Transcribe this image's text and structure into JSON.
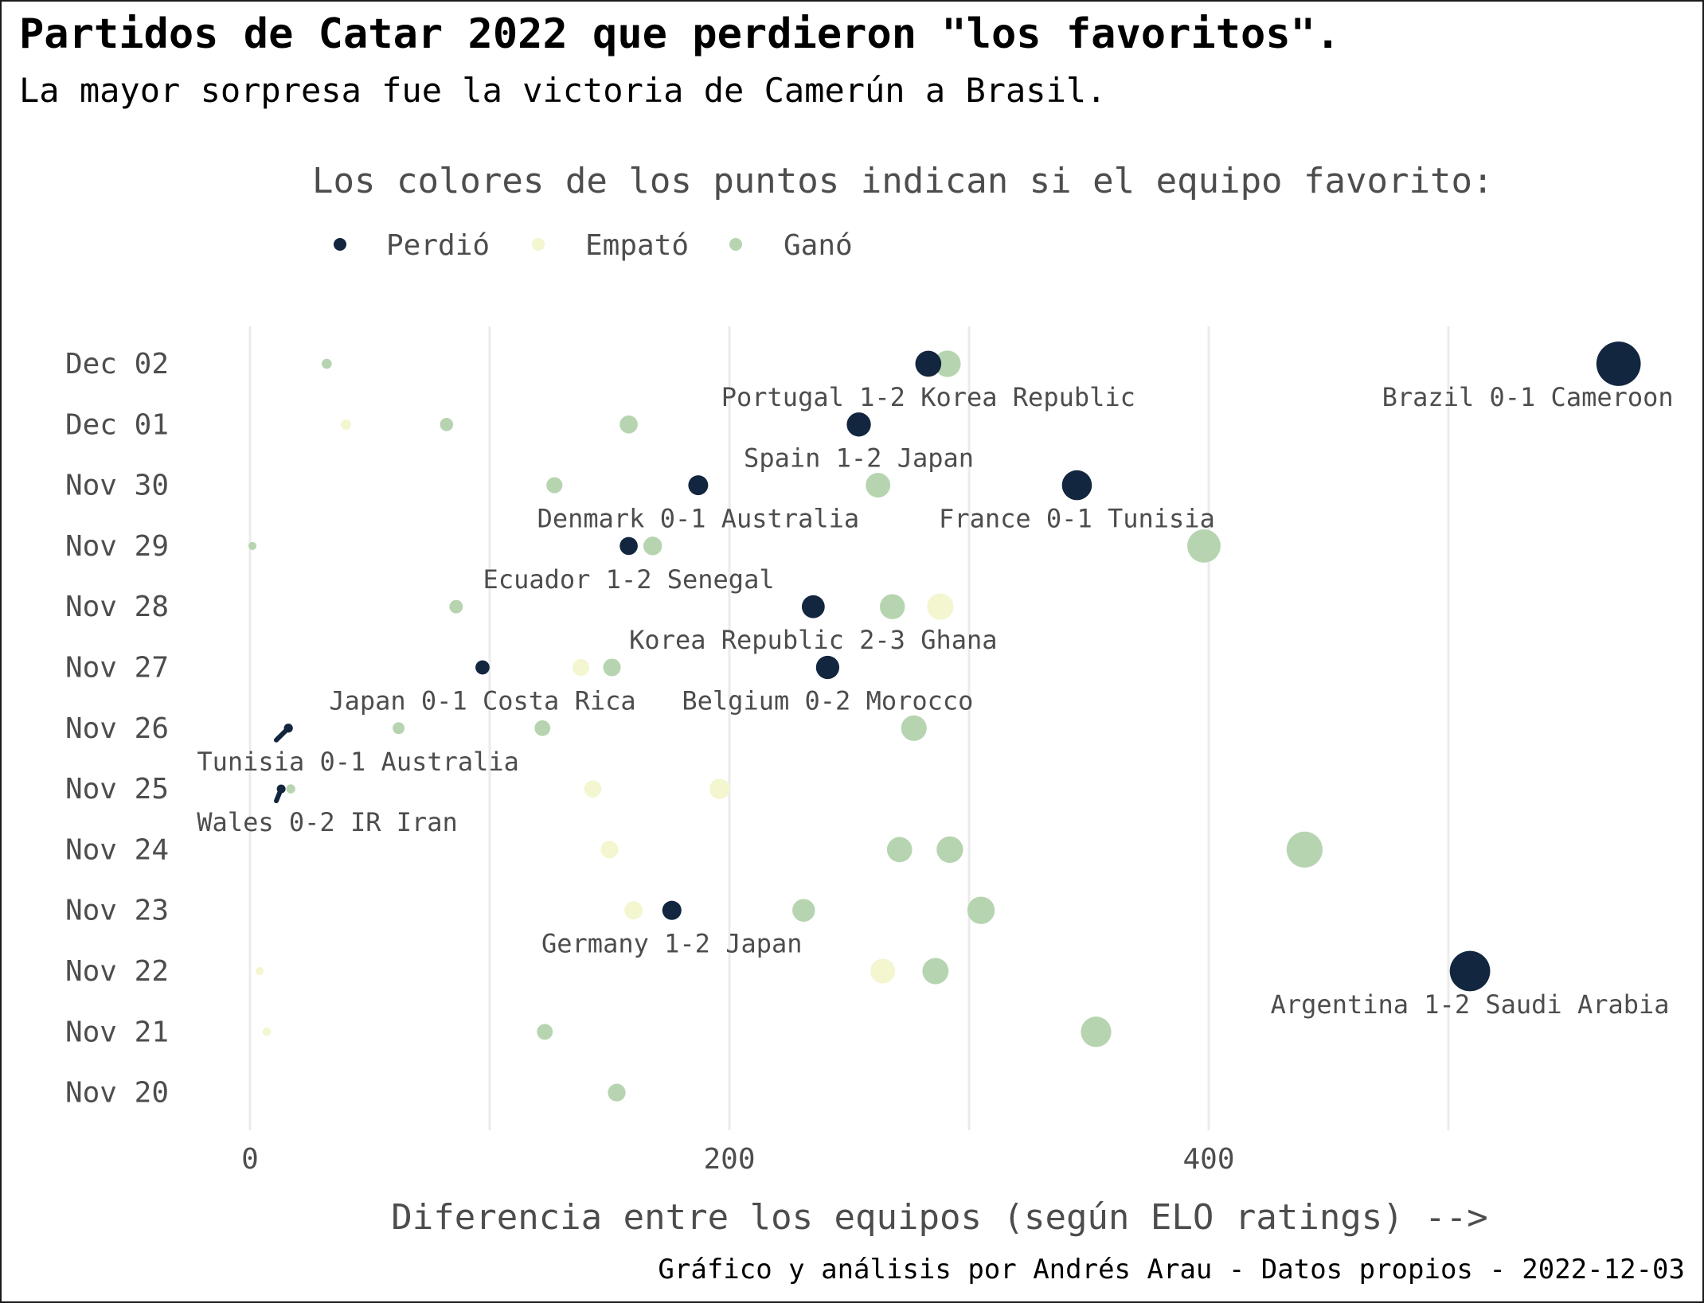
{
  "chart_data": {
    "type": "scatter",
    "title": "Partidos de Catar 2022 que perdieron \"los favoritos\".",
    "subtitle": "La mayor sorpresa fue la victoria de Camerún a Brasil.",
    "xlabel": "Diferencia entre los equipos (según ELO ratings) -->",
    "ylabel": "",
    "caption": "Gráfico y análisis por Andrés Arau - Datos propios - 2022-12-03",
    "legend": {
      "title": "Los colores de los puntos indican si el equipo favorito:",
      "position": "top",
      "entries": [
        {
          "key": "lost",
          "label": "Perdió",
          "color": "#13263f"
        },
        {
          "key": "draw",
          "label": "Empató",
          "color": "#f3f6cf"
        },
        {
          "key": "won",
          "label": "Ganó",
          "color": "#b6d4b0"
        }
      ]
    },
    "grid": true,
    "xlim": [
      -33,
      578
    ],
    "x_ticks": [
      0,
      200,
      400
    ],
    "x_tick_labels": [
      "0",
      "200",
      "400"
    ],
    "y_categories": [
      "Dec 02",
      "Dec 01",
      "Nov 30",
      "Nov 29",
      "Nov 28",
      "Nov 27",
      "Nov 26",
      "Nov 25",
      "Nov 24",
      "Nov 23",
      "Nov 22",
      "Nov 21",
      "Nov 20"
    ],
    "points": [
      {
        "date": "Dec 02",
        "x": 32,
        "result": "won"
      },
      {
        "date": "Dec 02",
        "x": 291,
        "result": "won"
      },
      {
        "date": "Dec 02",
        "x": 283,
        "result": "lost",
        "label": "Portugal 1-2 Korea Republic"
      },
      {
        "date": "Dec 02",
        "x": 571,
        "result": "lost",
        "label": "Brazil 0-1 Cameroon"
      },
      {
        "date": "Dec 01",
        "x": 40,
        "result": "draw"
      },
      {
        "date": "Dec 01",
        "x": 82,
        "result": "won"
      },
      {
        "date": "Dec 01",
        "x": 158,
        "result": "won"
      },
      {
        "date": "Dec 01",
        "x": 254,
        "result": "lost",
        "label": "Spain 1-2 Japan"
      },
      {
        "date": "Nov 30",
        "x": 127,
        "result": "won"
      },
      {
        "date": "Nov 30",
        "x": 187,
        "result": "lost",
        "label": "Denmark 0-1 Australia"
      },
      {
        "date": "Nov 30",
        "x": 262,
        "result": "won"
      },
      {
        "date": "Nov 30",
        "x": 345,
        "result": "lost",
        "label": "France 0-1 Tunisia"
      },
      {
        "date": "Nov 29",
        "x": 1,
        "result": "won"
      },
      {
        "date": "Nov 29",
        "x": 168,
        "result": "won"
      },
      {
        "date": "Nov 29",
        "x": 158,
        "result": "lost",
        "label": "Ecuador 1-2 Senegal"
      },
      {
        "date": "Nov 29",
        "x": 398,
        "result": "won"
      },
      {
        "date": "Nov 28",
        "x": 86,
        "result": "won"
      },
      {
        "date": "Nov 28",
        "x": 235,
        "result": "lost",
        "label": "Korea Republic 2-3 Ghana"
      },
      {
        "date": "Nov 28",
        "x": 268,
        "result": "won"
      },
      {
        "date": "Nov 28",
        "x": 288,
        "result": "draw"
      },
      {
        "date": "Nov 27",
        "x": 97,
        "result": "lost",
        "label": "Japan 0-1 Costa Rica"
      },
      {
        "date": "Nov 27",
        "x": 138,
        "result": "draw"
      },
      {
        "date": "Nov 27",
        "x": 151,
        "result": "won"
      },
      {
        "date": "Nov 27",
        "x": 241,
        "result": "lost",
        "label": "Belgium 0-2 Morocco"
      },
      {
        "date": "Nov 26",
        "x": 16,
        "result": "lost",
        "label": "Tunisia 0-1 Australia"
      },
      {
        "date": "Nov 26",
        "x": 62,
        "result": "won"
      },
      {
        "date": "Nov 26",
        "x": 122,
        "result": "won"
      },
      {
        "date": "Nov 26",
        "x": 277,
        "result": "won"
      },
      {
        "date": "Nov 25",
        "x": 13,
        "result": "lost",
        "label": "Wales 0-2 IR Iran"
      },
      {
        "date": "Nov 25",
        "x": 17,
        "result": "won"
      },
      {
        "date": "Nov 25",
        "x": 143,
        "result": "draw"
      },
      {
        "date": "Nov 25",
        "x": 196,
        "result": "draw"
      },
      {
        "date": "Nov 24",
        "x": 150,
        "result": "draw"
      },
      {
        "date": "Nov 24",
        "x": 271,
        "result": "won"
      },
      {
        "date": "Nov 24",
        "x": 292,
        "result": "won"
      },
      {
        "date": "Nov 24",
        "x": 440,
        "result": "won"
      },
      {
        "date": "Nov 23",
        "x": 160,
        "result": "draw"
      },
      {
        "date": "Nov 23",
        "x": 176,
        "result": "lost",
        "label": "Germany 1-2 Japan"
      },
      {
        "date": "Nov 23",
        "x": 231,
        "result": "won"
      },
      {
        "date": "Nov 23",
        "x": 305,
        "result": "won"
      },
      {
        "date": "Nov 22",
        "x": 4,
        "result": "draw"
      },
      {
        "date": "Nov 22",
        "x": 264,
        "result": "draw"
      },
      {
        "date": "Nov 22",
        "x": 286,
        "result": "won"
      },
      {
        "date": "Nov 22",
        "x": 509,
        "result": "lost",
        "label": "Argentina 1-2 Saudi Arabia"
      },
      {
        "date": "Nov 21",
        "x": 7,
        "result": "draw"
      },
      {
        "date": "Nov 21",
        "x": 123,
        "result": "won"
      },
      {
        "date": "Nov 21",
        "x": 353,
        "result": "won"
      },
      {
        "date": "Nov 20",
        "x": 153,
        "result": "won"
      }
    ]
  }
}
